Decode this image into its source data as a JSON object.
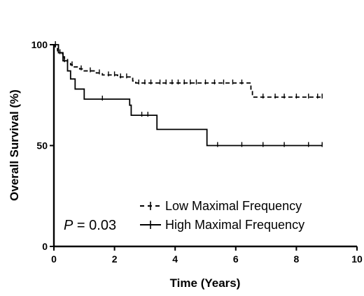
{
  "chart_data": {
    "type": "line",
    "subtype": "kaplan-meier",
    "title": "",
    "xlabel": "Time (Years)",
    "ylabel": "Overall Survival (%)",
    "xlim": [
      0,
      10
    ],
    "ylim": [
      0,
      100
    ],
    "xticks": [
      "0",
      "2",
      "4",
      "6",
      "8",
      "10"
    ],
    "yticks": [
      "0",
      "50",
      "100"
    ],
    "grid": false,
    "legend_position": "bottom-right",
    "annotation": {
      "p_label": "P",
      "p_rest": " = 0.03"
    },
    "series": [
      {
        "name": "Low Maximal Frequency",
        "style": "dashed",
        "steps": [
          [
            0,
            100
          ],
          [
            0.05,
            98
          ],
          [
            0.12,
            97
          ],
          [
            0.2,
            96
          ],
          [
            0.28,
            94
          ],
          [
            0.35,
            93
          ],
          [
            0.45,
            91
          ],
          [
            0.55,
            90
          ],
          [
            0.65,
            89
          ],
          [
            0.85,
            88
          ],
          [
            1.0,
            87
          ],
          [
            1.4,
            86
          ],
          [
            1.6,
            85
          ],
          [
            2.1,
            84
          ],
          [
            2.6,
            82
          ],
          [
            2.7,
            81
          ],
          [
            6.5,
            78
          ],
          [
            6.55,
            74
          ],
          [
            8.85,
            74
          ]
        ],
        "censors": [
          0.3,
          0.6,
          0.9,
          1.2,
          1.5,
          1.8,
          2.0,
          2.2,
          2.4,
          2.8,
          3.0,
          3.2,
          3.5,
          3.7,
          3.9,
          4.1,
          4.3,
          4.5,
          4.7,
          5.0,
          5.3,
          5.6,
          5.9,
          6.2,
          6.9,
          7.3,
          7.6,
          8.0,
          8.4,
          8.7,
          8.85
        ]
      },
      {
        "name": "High Maximal Frequency",
        "style": "solid",
        "steps": [
          [
            0,
            100
          ],
          [
            0.15,
            96
          ],
          [
            0.3,
            92
          ],
          [
            0.45,
            87
          ],
          [
            0.55,
            83
          ],
          [
            0.7,
            78
          ],
          [
            1.0,
            73
          ],
          [
            2.5,
            70
          ],
          [
            2.55,
            65
          ],
          [
            3.4,
            58
          ],
          [
            5.05,
            50
          ],
          [
            8.85,
            50
          ]
        ],
        "censors": [
          0.05,
          0.2,
          0.35,
          1.6,
          2.9,
          3.1,
          5.4,
          6.2,
          6.9,
          7.6,
          8.4,
          8.85
        ]
      }
    ]
  }
}
